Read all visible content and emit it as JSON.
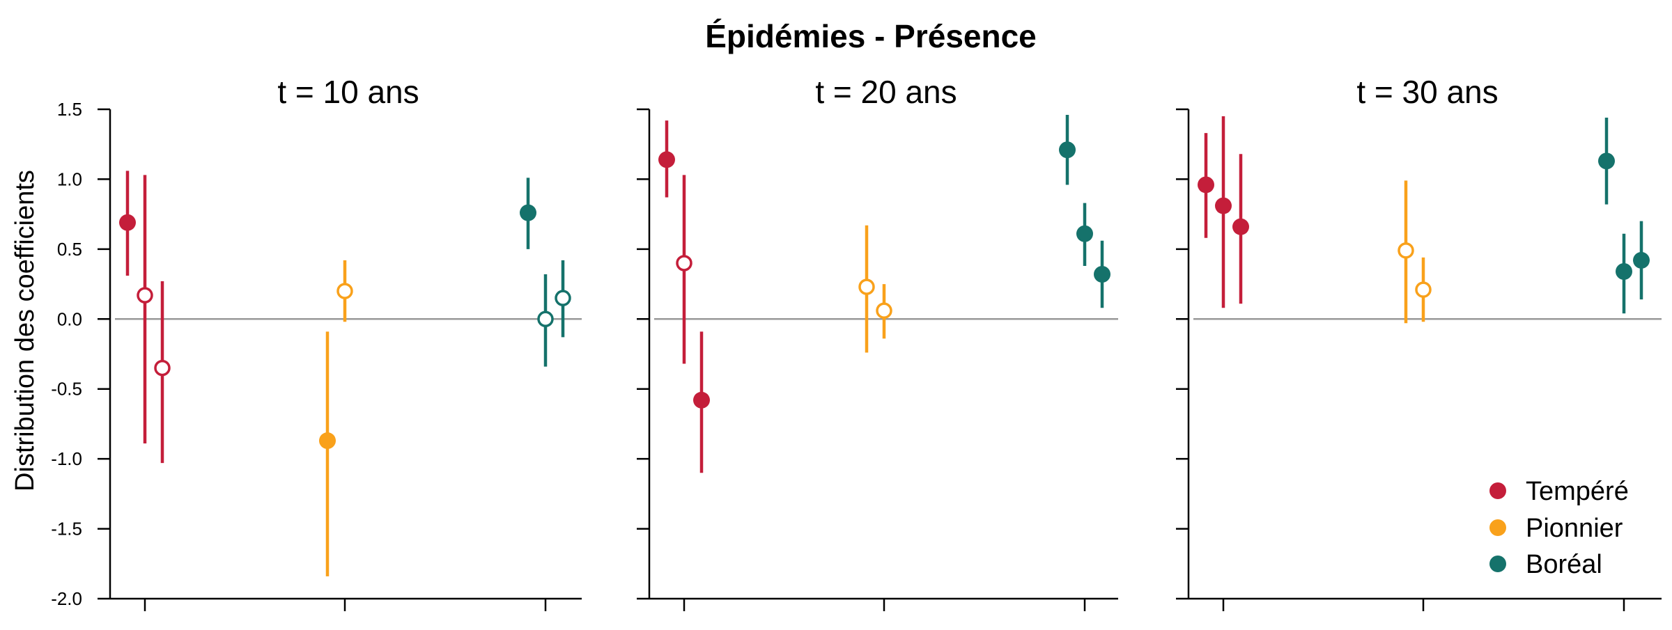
{
  "chart_data": {
    "type": "scatter",
    "title": "Épidémies - Présence",
    "ylabel": "Distribution des coefficients",
    "xlabel": "",
    "ylim": [
      -2.0,
      1.5
    ],
    "yticks": [
      "1.5",
      "1.0",
      "0.5",
      "0.0",
      "-0.5",
      "-1.0",
      "-1.5",
      "-2.0"
    ],
    "reference_line": 0,
    "grid": false,
    "legend_position": "bottom-right",
    "legend": [
      {
        "name": "Tempéré",
        "color": "#C41E3A"
      },
      {
        "name": "Pionnier",
        "color": "#F9A11B"
      },
      {
        "name": "Boréal",
        "color": "#15726B"
      }
    ],
    "panels": [
      {
        "title": "t = 10 ans",
        "points": [
          {
            "series": "Tempéré",
            "value": 0.69,
            "low": 0.31,
            "high": 1.06,
            "filled": true
          },
          {
            "series": "Tempéré",
            "value": 0.17,
            "low": -0.89,
            "high": 1.03,
            "filled": false
          },
          {
            "series": "Tempéré",
            "value": -0.35,
            "low": -1.03,
            "high": 0.27,
            "filled": false
          },
          {
            "series": "Pionnier",
            "value": -0.87,
            "low": -1.84,
            "high": -0.09,
            "filled": true
          },
          {
            "series": "Pionnier",
            "value": 0.2,
            "low": -0.02,
            "high": 0.42,
            "filled": false
          },
          {
            "series": "Boréal",
            "value": 0.76,
            "low": 0.5,
            "high": 1.01,
            "filled": true
          },
          {
            "series": "Boréal",
            "value": 0.0,
            "low": -0.34,
            "high": 0.32,
            "filled": false
          },
          {
            "series": "Boréal",
            "value": 0.15,
            "low": -0.13,
            "high": 0.42,
            "filled": false
          }
        ]
      },
      {
        "title": "t = 20 ans",
        "points": [
          {
            "series": "Tempéré",
            "value": 1.14,
            "low": 0.87,
            "high": 1.42,
            "filled": true
          },
          {
            "series": "Tempéré",
            "value": 0.4,
            "low": -0.32,
            "high": 1.03,
            "filled": false
          },
          {
            "series": "Tempéré",
            "value": -0.58,
            "low": -1.1,
            "high": -0.09,
            "filled": true
          },
          {
            "series": "Pionnier",
            "value": 0.23,
            "low": -0.24,
            "high": 0.67,
            "filled": false
          },
          {
            "series": "Pionnier",
            "value": 0.06,
            "low": -0.14,
            "high": 0.25,
            "filled": false
          },
          {
            "series": "Boréal",
            "value": 1.21,
            "low": 0.96,
            "high": 1.46,
            "filled": true
          },
          {
            "series": "Boréal",
            "value": 0.61,
            "low": 0.38,
            "high": 0.83,
            "filled": true
          },
          {
            "series": "Boréal",
            "value": 0.32,
            "low": 0.08,
            "high": 0.56,
            "filled": true
          }
        ]
      },
      {
        "title": "t = 30 ans",
        "points": [
          {
            "series": "Tempéré",
            "value": 0.96,
            "low": 0.58,
            "high": 1.33,
            "filled": true
          },
          {
            "series": "Tempéré",
            "value": 0.81,
            "low": 0.08,
            "high": 1.45,
            "filled": true
          },
          {
            "series": "Tempéré",
            "value": 0.66,
            "low": 0.11,
            "high": 1.18,
            "filled": true
          },
          {
            "series": "Pionnier",
            "value": 0.49,
            "low": -0.03,
            "high": 0.99,
            "filled": false
          },
          {
            "series": "Pionnier",
            "value": 0.21,
            "low": -0.02,
            "high": 0.44,
            "filled": false
          },
          {
            "series": "Boréal",
            "value": 1.13,
            "low": 0.82,
            "high": 1.44,
            "filled": true
          },
          {
            "series": "Boréal",
            "value": 0.34,
            "low": 0.04,
            "high": 0.61,
            "filled": true
          },
          {
            "series": "Boréal",
            "value": 0.42,
            "low": 0.14,
            "high": 0.7,
            "filled": true
          }
        ]
      }
    ]
  }
}
